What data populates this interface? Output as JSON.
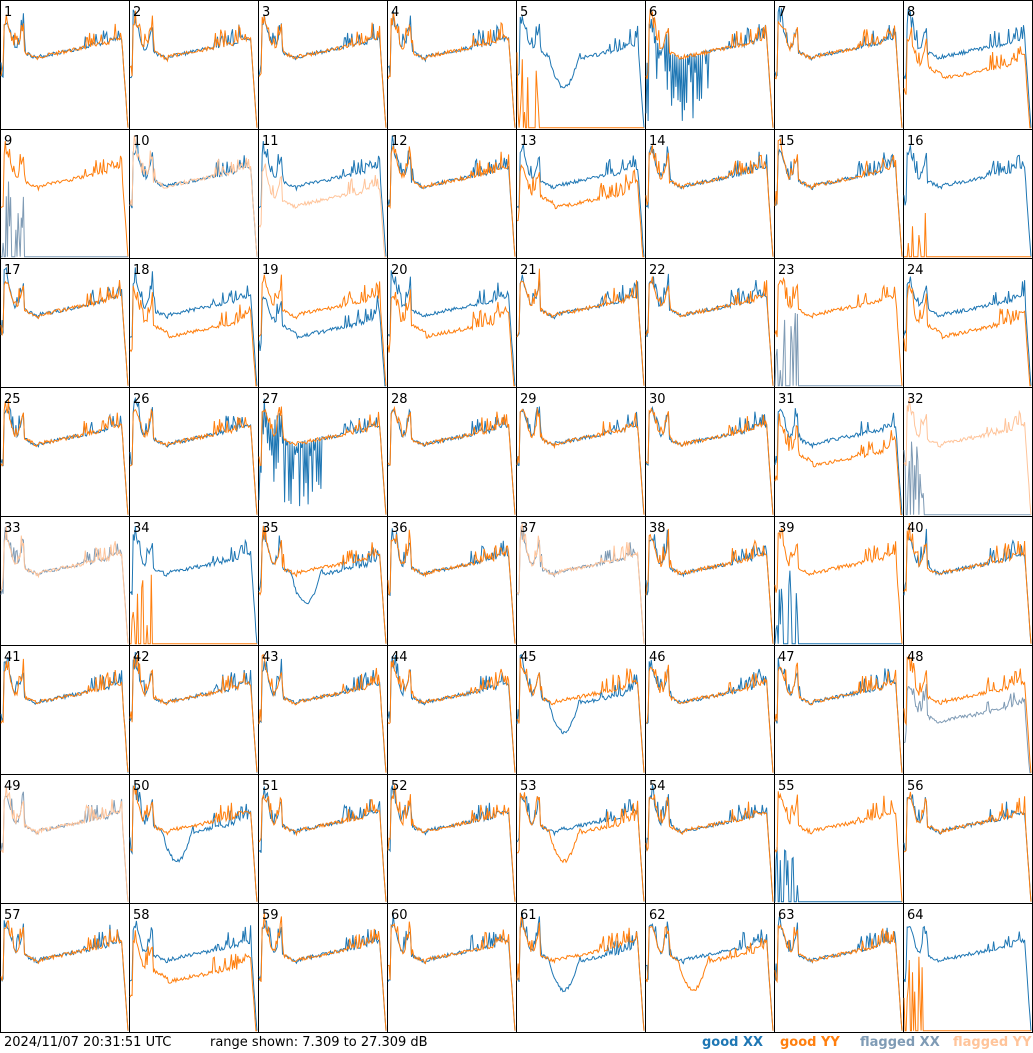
{
  "footer": {
    "timestamp": "2024/11/07 20:31:51 UTC",
    "range_text": "range shown: 7.309 to 27.309 dB"
  },
  "legend": {
    "good_xx": "good XX",
    "good_yy": "good YY",
    "flagged_xx": "flagged XX",
    "flagged_yy": "flagged YY"
  },
  "colors": {
    "good_xx": "#1f77b4",
    "good_yy": "#ff7f0e",
    "flagged_xx": "#7f9bb5",
    "flagged_yy": "#ffc49a",
    "grid": "#000000"
  },
  "chart_data": {
    "type": "line",
    "layout": "8x8 grid of small-multiple spectra",
    "ylim_db": [
      7.309,
      27.309
    ],
    "panels": [
      {
        "id": "1",
        "xx": "normal",
        "yy": "normal"
      },
      {
        "id": "2",
        "xx": "normal",
        "yy": "normal"
      },
      {
        "id": "3",
        "xx": "normal",
        "yy": "normal"
      },
      {
        "id": "4",
        "xx": "normal",
        "yy": "normal"
      },
      {
        "id": "5",
        "xx": "dip",
        "yy": "dead"
      },
      {
        "id": "6",
        "xx": "spiky",
        "yy": "normal"
      },
      {
        "id": "7",
        "xx": "normal",
        "yy": "normal"
      },
      {
        "id": "8",
        "xx": "normal",
        "yy": "low"
      },
      {
        "id": "9",
        "xx": "dead-flagged",
        "yy": "normal"
      },
      {
        "id": "10",
        "xx": "normal",
        "yy": "flagged"
      },
      {
        "id": "11",
        "xx": "normal",
        "yy": "flagged-low"
      },
      {
        "id": "12",
        "xx": "normal",
        "yy": "normal"
      },
      {
        "id": "13",
        "xx": "normal",
        "yy": "low"
      },
      {
        "id": "14",
        "xx": "normal",
        "yy": "normal"
      },
      {
        "id": "15",
        "xx": "normal",
        "yy": "normal"
      },
      {
        "id": "16",
        "xx": "normal",
        "yy": "dead"
      },
      {
        "id": "17",
        "xx": "normal",
        "yy": "normal"
      },
      {
        "id": "18",
        "xx": "normal",
        "yy": "low"
      },
      {
        "id": "19",
        "xx": "low",
        "yy": "normal"
      },
      {
        "id": "20",
        "xx": "normal",
        "yy": "low"
      },
      {
        "id": "21",
        "xx": "normal",
        "yy": "normal"
      },
      {
        "id": "22",
        "xx": "normal",
        "yy": "normal"
      },
      {
        "id": "23",
        "xx": "dead-flagged",
        "yy": "normal"
      },
      {
        "id": "24",
        "xx": "normal",
        "yy": "low"
      },
      {
        "id": "25",
        "xx": "normal",
        "yy": "normal"
      },
      {
        "id": "26",
        "xx": "normal",
        "yy": "normal"
      },
      {
        "id": "27",
        "xx": "spiky",
        "yy": "normal"
      },
      {
        "id": "28",
        "xx": "normal",
        "yy": "normal"
      },
      {
        "id": "29",
        "xx": "normal",
        "yy": "normal"
      },
      {
        "id": "30",
        "xx": "normal",
        "yy": "normal"
      },
      {
        "id": "31",
        "xx": "normal",
        "yy": "low"
      },
      {
        "id": "32",
        "xx": "dead-flagged",
        "yy": "flagged"
      },
      {
        "id": "33",
        "xx": "flagged",
        "yy": "flagged"
      },
      {
        "id": "34",
        "xx": "normal",
        "yy": "dead"
      },
      {
        "id": "35",
        "xx": "dip",
        "yy": "normal"
      },
      {
        "id": "36",
        "xx": "normal",
        "yy": "normal"
      },
      {
        "id": "37",
        "xx": "flagged",
        "yy": "flagged"
      },
      {
        "id": "38",
        "xx": "normal",
        "yy": "normal"
      },
      {
        "id": "39",
        "xx": "dead",
        "yy": "normal"
      },
      {
        "id": "40",
        "xx": "normal",
        "yy": "normal"
      },
      {
        "id": "41",
        "xx": "normal",
        "yy": "normal"
      },
      {
        "id": "42",
        "xx": "normal",
        "yy": "normal"
      },
      {
        "id": "43",
        "xx": "normal",
        "yy": "normal"
      },
      {
        "id": "44",
        "xx": "normal",
        "yy": "normal"
      },
      {
        "id": "45",
        "xx": "dip",
        "yy": "normal"
      },
      {
        "id": "46",
        "xx": "normal",
        "yy": "normal"
      },
      {
        "id": "47",
        "xx": "normal",
        "yy": "normal"
      },
      {
        "id": "48",
        "xx": "flagged-low",
        "yy": "normal"
      },
      {
        "id": "49",
        "xx": "flagged",
        "yy": "flagged"
      },
      {
        "id": "50",
        "xx": "dip",
        "yy": "normal"
      },
      {
        "id": "51",
        "xx": "normal",
        "yy": "normal"
      },
      {
        "id": "52",
        "xx": "normal",
        "yy": "normal"
      },
      {
        "id": "53",
        "xx": "normal",
        "yy": "dip"
      },
      {
        "id": "54",
        "xx": "normal",
        "yy": "normal"
      },
      {
        "id": "55",
        "xx": "dead",
        "yy": "normal"
      },
      {
        "id": "56",
        "xx": "normal",
        "yy": "normal"
      },
      {
        "id": "57",
        "xx": "normal",
        "yy": "normal"
      },
      {
        "id": "58",
        "xx": "normal",
        "yy": "low"
      },
      {
        "id": "59",
        "xx": "normal",
        "yy": "normal"
      },
      {
        "id": "60",
        "xx": "normal",
        "yy": "normal"
      },
      {
        "id": "61",
        "xx": "dip",
        "yy": "normal"
      },
      {
        "id": "62",
        "xx": "normal",
        "yy": "dip"
      },
      {
        "id": "63",
        "xx": "normal",
        "yy": "normal"
      },
      {
        "id": "64",
        "xx": "normal",
        "yy": "dead"
      }
    ]
  }
}
